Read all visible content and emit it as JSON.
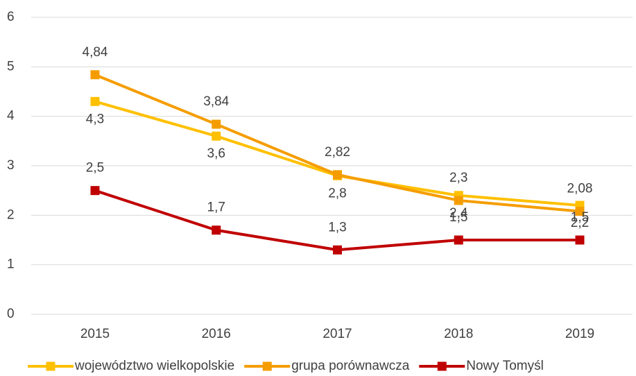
{
  "chart_data": {
    "type": "line",
    "categories": [
      "2015",
      "2016",
      "2017",
      "2018",
      "2019"
    ],
    "series": [
      {
        "name": "województwo wielkopolskie",
        "color": "#FFC000",
        "values": [
          4.3,
          3.6,
          2.8,
          2.4,
          2.2
        ],
        "value_labels": [
          "4,3",
          "3,6",
          "2,8",
          "2,4",
          "2,2"
        ]
      },
      {
        "name": "grupa porównawcza",
        "color": "#F59D00",
        "values": [
          4.84,
          3.84,
          2.82,
          2.3,
          2.08
        ],
        "value_labels": [
          "4,84",
          "3,84",
          "2,82",
          "2,3",
          "2,08"
        ]
      },
      {
        "name": "Nowy Tomyśl",
        "color": "#C00000",
        "values": [
          2.5,
          1.7,
          1.3,
          1.5,
          1.5
        ],
        "value_labels": [
          "2,5",
          "1,7",
          "1,3",
          "1,5",
          "1,5"
        ]
      }
    ],
    "ylim": [
      0,
      6
    ],
    "yticks": [
      0,
      1,
      2,
      3,
      4,
      5,
      6
    ],
    "grid": true,
    "legend": "bottom"
  }
}
